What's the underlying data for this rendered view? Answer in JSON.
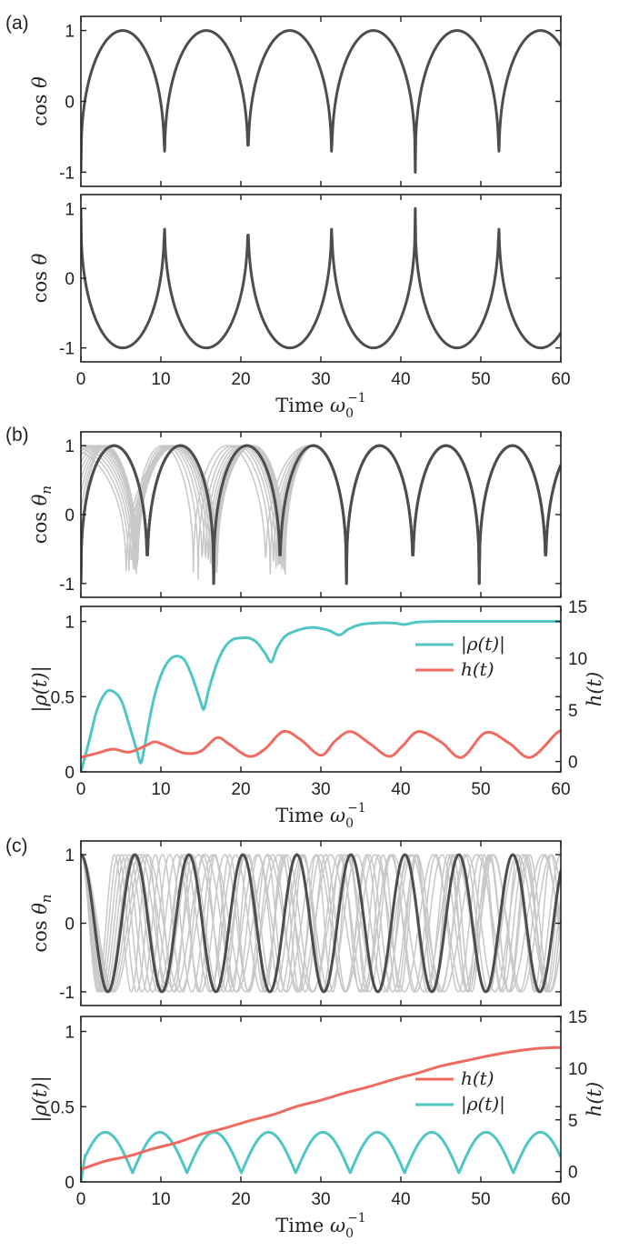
{
  "panel_labels": [
    "(a)",
    "(b)",
    "(c)"
  ],
  "colors": {
    "dark": "#4d4d4d",
    "ghost": "#c8c8c8",
    "cyan": "#4fc6c4",
    "red": "#f06a60"
  },
  "chart_data": [
    {
      "id": "a_top",
      "type": "line",
      "panel": "(a)",
      "xlabel": "",
      "ylabel": "cos θ",
      "xlim": [
        0,
        60
      ],
      "ylim": [
        -1.2,
        1.2
      ],
      "yticks": [
        "-1",
        "0",
        "1"
      ],
      "yticks_values": [
        -1,
        0,
        1
      ],
      "series": [
        {
          "name": "cos θ",
          "kind": "pendulum",
          "period": 10.45,
          "offset": 0,
          "sign": 1
        }
      ]
    },
    {
      "id": "a_bottom",
      "type": "line",
      "panel": "(a)",
      "xlabel": "Time ω0−1",
      "ylabel": "cos θ",
      "xlim": [
        0,
        60
      ],
      "ylim": [
        -1.2,
        1.2
      ],
      "xticks": [
        "0",
        "10",
        "20",
        "30",
        "40",
        "50",
        "60"
      ],
      "xticks_values": [
        0,
        10,
        20,
        30,
        40,
        50,
        60
      ],
      "yticks": [
        "-1",
        "0",
        "1"
      ],
      "yticks_values": [
        -1,
        0,
        1
      ],
      "series": [
        {
          "name": "cos θ",
          "kind": "pendulum",
          "period": 10.45,
          "offset": 0,
          "sign": -1
        }
      ]
    },
    {
      "id": "b_top",
      "type": "line",
      "panel": "(b)",
      "xlabel": "",
      "ylabel": "cos θn",
      "xlim": [
        0,
        60
      ],
      "ylim": [
        -1.2,
        1.2
      ],
      "yticks": [
        "-1",
        "0",
        "1"
      ],
      "yticks_values": [
        -1,
        0,
        1
      ],
      "series": [
        {
          "name": "θ1 (highlighted)",
          "kind": "pendulum",
          "period": 8.3,
          "offset": 0,
          "sign": 1
        },
        {
          "name": "other oscillators",
          "kind": "ghost_sync",
          "count": 14,
          "sync_time": 30
        }
      ]
    },
    {
      "id": "b_bottom",
      "type": "line",
      "panel": "(b)",
      "xlabel": "Time ω0−1",
      "ylabel": "|ρ(t)|",
      "ylabel_right": "h(t)",
      "xlim": [
        0,
        60
      ],
      "ylim": [
        0,
        1.1
      ],
      "ylim_right": [
        -1,
        15
      ],
      "xticks": [
        "0",
        "10",
        "20",
        "30",
        "40",
        "50",
        "60"
      ],
      "xticks_values": [
        0,
        10,
        20,
        30,
        40,
        50,
        60
      ],
      "yticks": [
        "0",
        "0.5",
        "1"
      ],
      "yticks_values": [
        0,
        0.5,
        1
      ],
      "yticks_right": [
        "0",
        "5",
        "10",
        "15"
      ],
      "yticks_right_values": [
        0,
        5,
        10,
        15
      ],
      "legend": [
        {
          "label": "|ρ(t)|",
          "color": "#4fc6c4"
        },
        {
          "label": "h(t)",
          "color": "#f06a60"
        }
      ],
      "series": [
        {
          "name": "|ρ(t)|",
          "axis": "left",
          "color": "#4fc6c4",
          "x": [
            0,
            1,
            2,
            3,
            3.8,
            5,
            6,
            7,
            7.5,
            8,
            9,
            10,
            11,
            12,
            13,
            14,
            15,
            15.4,
            16,
            17,
            18,
            19,
            20,
            21,
            22,
            23,
            23.8,
            24.5,
            25.5,
            27,
            29,
            31,
            32.3,
            33.5,
            35,
            37,
            39,
            40.5,
            42,
            45,
            50,
            55,
            60
          ],
          "y": [
            0.0,
            0.2,
            0.41,
            0.52,
            0.54,
            0.48,
            0.32,
            0.14,
            0.06,
            0.18,
            0.46,
            0.64,
            0.74,
            0.77,
            0.74,
            0.62,
            0.46,
            0.42,
            0.55,
            0.72,
            0.83,
            0.88,
            0.89,
            0.89,
            0.86,
            0.79,
            0.73,
            0.82,
            0.9,
            0.94,
            0.96,
            0.94,
            0.91,
            0.95,
            0.98,
            0.99,
            0.99,
            0.98,
            0.995,
            1.0,
            1.0,
            1.0,
            1.0
          ]
        },
        {
          "name": "h(t)",
          "axis": "right",
          "color": "#f06a60",
          "x": [
            0,
            2,
            4,
            6,
            8,
            9.3,
            11,
            13,
            15,
            17,
            18.5,
            21,
            23,
            25.3,
            27.5,
            30,
            31.8,
            33.7,
            36,
            38.5,
            40.2,
            42.2,
            45,
            47.6,
            50.6,
            53.5,
            56.2,
            59.4,
            60
          ],
          "y": [
            0.4,
            0.8,
            1.2,
            0.9,
            1.5,
            1.9,
            1.4,
            0.8,
            1.0,
            2.3,
            1.7,
            0.5,
            1.2,
            2.9,
            2.1,
            0.6,
            2.0,
            2.9,
            1.8,
            0.5,
            1.5,
            2.9,
            1.9,
            0.4,
            2.8,
            1.8,
            0.4,
            2.7,
            2.9
          ]
        }
      ]
    },
    {
      "id": "c_top",
      "type": "line",
      "panel": "(c)",
      "xlabel": "",
      "ylabel": "cos θn",
      "xlim": [
        0,
        60
      ],
      "ylim": [
        -1.2,
        1.2
      ],
      "yticks": [
        "-1",
        "0",
        "1"
      ],
      "yticks_values": [
        -1,
        0,
        1
      ],
      "series": [
        {
          "name": "θ1 (highlighted)",
          "kind": "cosine",
          "period": 6.75,
          "offset": 0
        },
        {
          "name": "other oscillators",
          "kind": "ghost_spread",
          "count": 10
        }
      ]
    },
    {
      "id": "c_bottom",
      "type": "line",
      "panel": "(c)",
      "xlabel": "Time ω0−1",
      "ylabel": "|ρ(t)|",
      "ylabel_right": "h(t)",
      "xlim": [
        0,
        60
      ],
      "ylim": [
        0,
        1.1
      ],
      "ylim_right": [
        -1,
        15
      ],
      "xticks": [
        "0",
        "10",
        "20",
        "30",
        "40",
        "50",
        "60"
      ],
      "xticks_values": [
        0,
        10,
        20,
        30,
        40,
        50,
        60
      ],
      "yticks": [
        "0",
        "0.5",
        "1"
      ],
      "yticks_values": [
        0,
        0.5,
        1
      ],
      "yticks_right": [
        "0",
        "5",
        "10",
        "15"
      ],
      "yticks_right_values": [
        0,
        5,
        10,
        15
      ],
      "legend": [
        {
          "label": "h(t)",
          "color": "#f06a60"
        },
        {
          "label": "|ρ(t)|",
          "color": "#4fc6c4"
        }
      ],
      "series": [
        {
          "name": "|ρ(t)|",
          "axis": "left",
          "color": "#4fc6c4",
          "kind": "abs_sine",
          "amplitude": 0.27,
          "base": 0.06,
          "period": 6.8
        },
        {
          "name": "h(t)",
          "axis": "right",
          "color": "#f06a60",
          "x": [
            0,
            3,
            6,
            9,
            12,
            15,
            18,
            21,
            24,
            27,
            30,
            33,
            36,
            39,
            42,
            45,
            48,
            51,
            54,
            57,
            60
          ],
          "y": [
            0.2,
            1.0,
            1.5,
            2.2,
            2.8,
            3.6,
            4.2,
            4.9,
            5.5,
            6.3,
            6.9,
            7.6,
            8.2,
            8.9,
            9.5,
            10.2,
            10.7,
            11.2,
            11.6,
            11.9,
            12.0
          ]
        }
      ]
    }
  ]
}
